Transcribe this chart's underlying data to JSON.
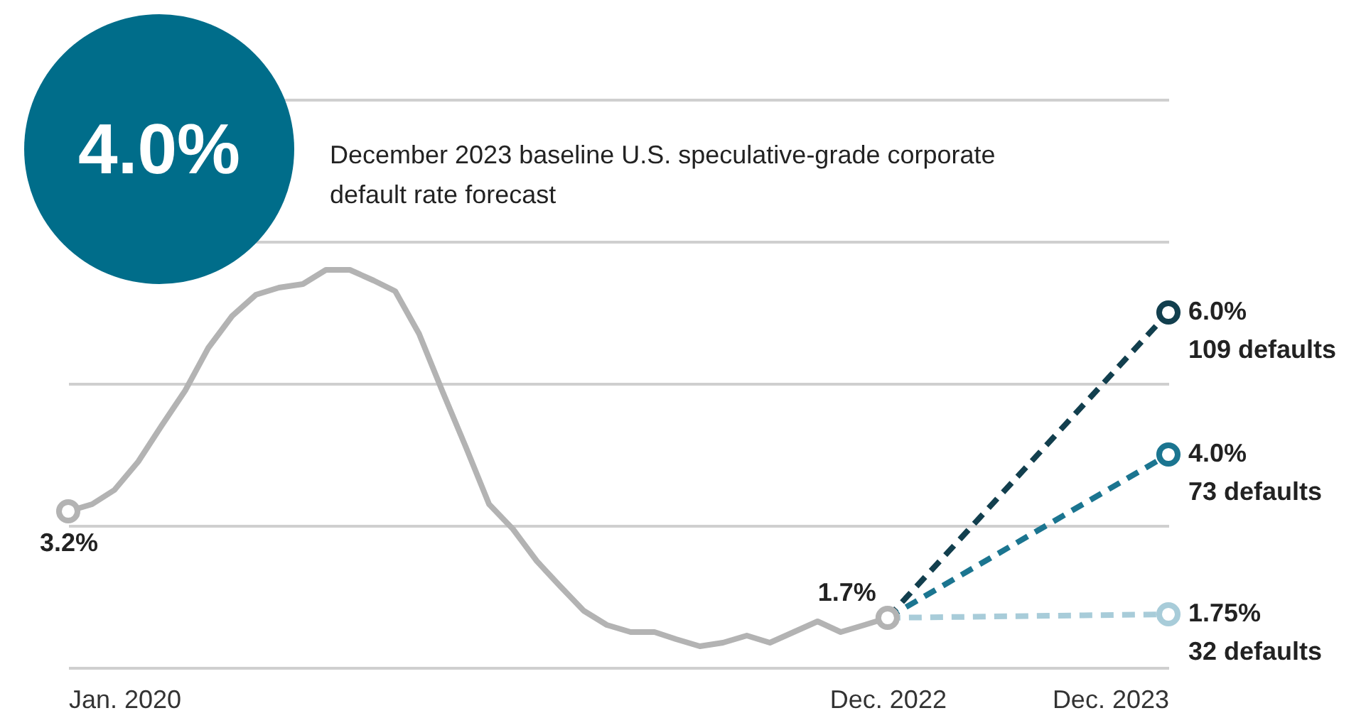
{
  "chart_data": {
    "type": "line",
    "annotations": [
      "4.0%",
      "December 2023 baseline U.S. speculative-grade corporate default rate forecast"
    ],
    "xlim": [
      "2020-01",
      "2023-12"
    ],
    "xticks": [
      {
        "value": "2020-01",
        "label": "Jan. 2020"
      },
      {
        "value": "2022-12",
        "label": "Dec. 2022"
      },
      {
        "value": "2023-12",
        "label": "Dec. 2023"
      }
    ],
    "ylim": [
      1,
      9
    ],
    "yticks": [
      {
        "value": 1,
        "label": null
      },
      {
        "value": 3,
        "label": null
      },
      {
        "value": 5,
        "label": null
      },
      {
        "value": 7,
        "label": null
      },
      {
        "value": 9,
        "label": null
      }
    ],
    "grid": "y",
    "series": [
      {
        "color": "#b3b3b3",
        "line_style": "solid",
        "x": [
          "2020-01",
          "2020-02",
          "2020-03",
          "2020-04",
          "2020-05",
          "2020-06",
          "2020-07",
          "2020-08",
          "2020-09",
          "2020-10",
          "2020-11",
          "2020-12",
          "2021-01",
          "2021-02",
          "2021-03",
          "2021-04",
          "2021-05",
          "2021-06",
          "2021-07",
          "2021-08",
          "2021-09",
          "2021-10",
          "2021-11",
          "2021-12",
          "2022-01",
          "2022-02",
          "2022-03",
          "2022-04",
          "2022-05",
          "2022-06",
          "2022-07",
          "2022-08",
          "2022-09",
          "2022-10",
          "2022-11",
          "2022-12"
        ],
        "values": [
          3.2,
          3.3,
          3.5,
          3.9,
          4.4,
          4.9,
          5.5,
          5.95,
          6.25,
          6.35,
          6.4,
          6.6,
          6.6,
          6.45,
          6.3,
          5.7,
          4.9,
          4.1,
          3.3,
          2.95,
          2.5,
          2.15,
          1.8,
          1.6,
          1.5,
          1.5,
          1.4,
          1.3,
          1.35,
          1.45,
          1.35,
          1.5,
          1.65,
          1.5,
          1.6,
          1.7
        ],
        "value_labels": [
          "3.2%",
          null,
          null,
          null,
          null,
          null,
          null,
          null,
          null,
          null,
          null,
          null,
          null,
          null,
          null,
          null,
          null,
          null,
          null,
          null,
          null,
          null,
          null,
          null,
          null,
          null,
          null,
          null,
          null,
          null,
          null,
          null,
          null,
          null,
          null,
          "1.7%"
        ]
      },
      {
        "color": "#123f4e",
        "line_style": "dashed",
        "x": [
          "2022-12",
          "2023-12"
        ],
        "values": [
          1.7,
          6.0
        ],
        "value_labels": [
          null,
          "6.0%\n109 defaults"
        ]
      },
      {
        "color": "#1b7590",
        "line_style": "dashed",
        "x": [
          "2022-12",
          "2023-12"
        ],
        "values": [
          1.7,
          4.0
        ],
        "value_labels": [
          null,
          "4.0%\n73 defaults"
        ]
      },
      {
        "color": "#a8ccd9",
        "line_style": "dashed",
        "x": [
          "2022-12",
          "2023-12"
        ],
        "values": [
          1.7,
          1.75
        ],
        "value_labels": [
          null,
          "1.75%\n32 defaults"
        ]
      }
    ]
  }
}
